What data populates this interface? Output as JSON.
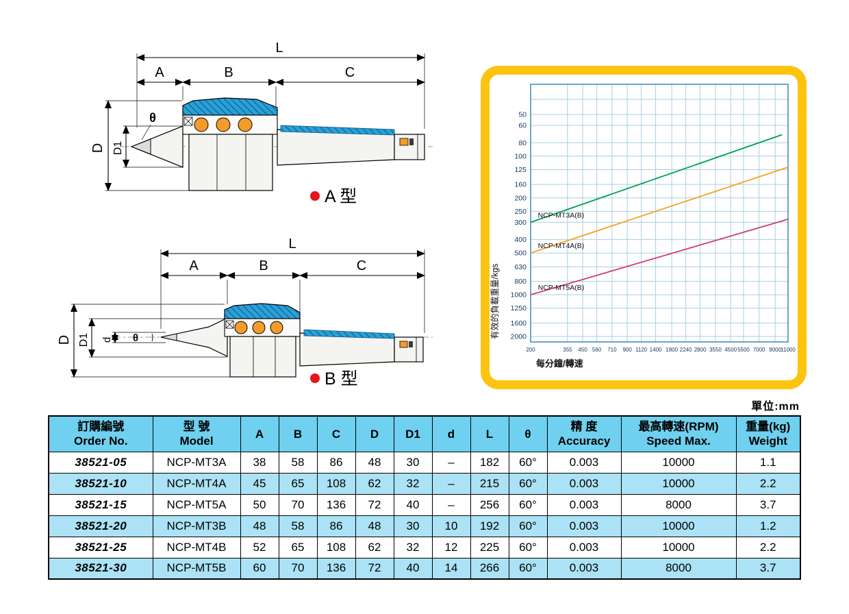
{
  "page": {
    "unit_label": "單位:mm"
  },
  "colors": {
    "chart_frame": "#fcc40f",
    "table_header_blue": "#6fd0ef",
    "table_alt_row_blue": "#abe2f5",
    "hatch_blue": "#2ba0d6",
    "bearing_orange": "#f49b2a",
    "bullet_red": "#e4151b"
  },
  "diagrams": {
    "labels": {
      "L": "L",
      "A": "A",
      "B": "B",
      "C": "C",
      "D": "D",
      "D1": "D1",
      "d": "d",
      "theta": "θ"
    },
    "type_a": {
      "name": "A 型"
    },
    "type_b": {
      "name": "B 型"
    }
  },
  "chart_data": {
    "type": "line",
    "title": "",
    "xlabel": "每分鐘/轉速",
    "ylabel": "有效的負載重量/kgs",
    "x_scale": "log",
    "y_scale": "log (inverted, values increase downward)",
    "grid": true,
    "legend_position": "labels on lines",
    "x_ticks": [
      200,
      355,
      450,
      560,
      710,
      900,
      1120,
      1400,
      1800,
      2240,
      2800,
      3550,
      4500,
      5500,
      7000,
      9000,
      11000
    ],
    "y_ticks": [
      50,
      60,
      80,
      100,
      125,
      160,
      200,
      250,
      300,
      400,
      500,
      630,
      800,
      1000,
      1250,
      1600,
      2000
    ],
    "series": [
      {
        "name": "NCP-MT3A(B)",
        "color": "#009e53",
        "points": [
          [
            200,
            300
          ],
          [
            10000,
            70
          ]
        ]
      },
      {
        "name": "NCP-MT4A(B)",
        "color": "#f6a21c",
        "points": [
          [
            200,
            500
          ],
          [
            11000,
            120
          ]
        ]
      },
      {
        "name": "NCP-MT5A(B)",
        "color": "#d23a6e",
        "points": [
          [
            200,
            1000
          ],
          [
            11000,
            285
          ]
        ]
      }
    ]
  },
  "table": {
    "headers": [
      {
        "lines": [
          "訂購編號",
          "Order No."
        ]
      },
      {
        "lines": [
          "型 號",
          "Model"
        ]
      },
      {
        "lines": [
          "A"
        ]
      },
      {
        "lines": [
          "B"
        ]
      },
      {
        "lines": [
          "C"
        ]
      },
      {
        "lines": [
          "D"
        ]
      },
      {
        "lines": [
          "D1"
        ]
      },
      {
        "lines": [
          "d"
        ]
      },
      {
        "lines": [
          "L"
        ]
      },
      {
        "lines": [
          "θ"
        ]
      },
      {
        "lines": [
          "精 度",
          "Accuracy"
        ]
      },
      {
        "lines": [
          "最高轉速(RPM)",
          "Speed Max."
        ]
      },
      {
        "lines": [
          "重量(kg)",
          "Weight"
        ]
      }
    ],
    "rows": [
      [
        "38521-05",
        "NCP-MT3A",
        "38",
        "58",
        "86",
        "48",
        "30",
        "–",
        "182",
        "60°",
        "0.003",
        "10000",
        "1.1"
      ],
      [
        "38521-10",
        "NCP-MT4A",
        "45",
        "65",
        "108",
        "62",
        "32",
        "–",
        "215",
        "60°",
        "0.003",
        "10000",
        "2.2"
      ],
      [
        "38521-15",
        "NCP-MT5A",
        "50",
        "70",
        "136",
        "72",
        "40",
        "–",
        "256",
        "60°",
        "0.003",
        "8000",
        "3.7"
      ],
      [
        "38521-20",
        "NCP-MT3B",
        "48",
        "58",
        "86",
        "48",
        "30",
        "10",
        "192",
        "60°",
        "0.003",
        "10000",
        "1.2"
      ],
      [
        "38521-25",
        "NCP-MT4B",
        "52",
        "65",
        "108",
        "62",
        "32",
        "12",
        "225",
        "60°",
        "0.003",
        "10000",
        "2.2"
      ],
      [
        "38521-30",
        "NCP-MT5B",
        "60",
        "70",
        "136",
        "72",
        "40",
        "14",
        "266",
        "60°",
        "0.003",
        "8000",
        "3.7"
      ]
    ]
  }
}
